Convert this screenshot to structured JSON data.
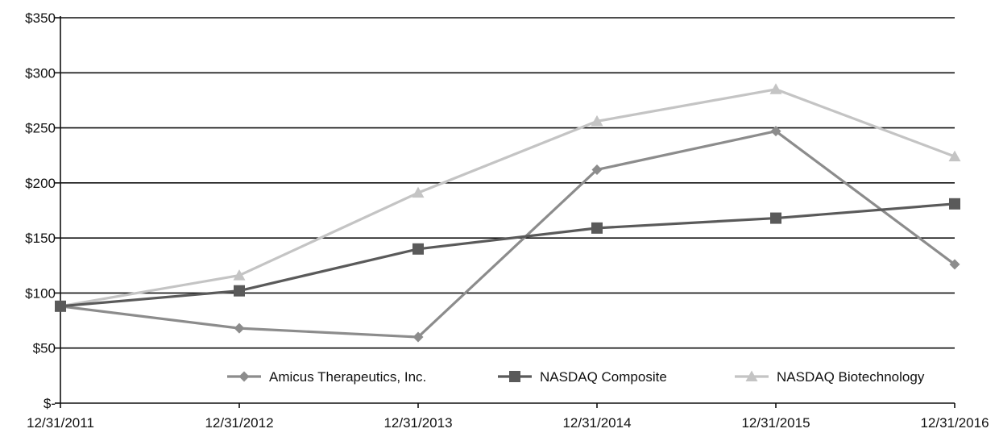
{
  "chart_data": {
    "type": "line",
    "title": "",
    "xlabel": "",
    "ylabel": "",
    "categories": [
      "12/31/2011",
      "12/31/2012",
      "12/31/2013",
      "12/31/2014",
      "12/31/2015",
      "12/31/2016"
    ],
    "y_tick_labels": [
      "$-",
      "$50",
      "$100",
      "$150",
      "$200",
      "$250",
      "$300",
      "$350"
    ],
    "ylim": [
      0,
      350
    ],
    "y_step": 50,
    "grid": true,
    "legend_position": "bottom-right",
    "series": [
      {
        "name": "Amicus Therapeutics, Inc.",
        "marker": "diamond",
        "color": "#8c8c8c",
        "values": [
          88,
          68,
          60,
          212,
          247,
          126
        ]
      },
      {
        "name": "NASDAQ Composite",
        "marker": "square",
        "color": "#5a5a5a",
        "values": [
          88,
          102,
          140,
          159,
          168,
          181
        ]
      },
      {
        "name": "NASDAQ Biotechnology",
        "marker": "triangle",
        "color": "#c4c4c4",
        "values": [
          88,
          116,
          191,
          256,
          285,
          224
        ]
      }
    ]
  }
}
